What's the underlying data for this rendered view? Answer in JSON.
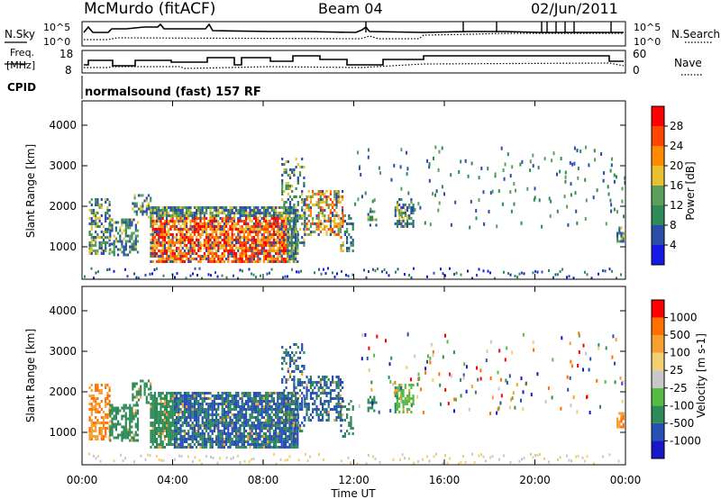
{
  "header": {
    "station": "McMurdo (fitACF)",
    "beam": "Beam 04",
    "date": "02/Jun/2011"
  },
  "top_panel": {
    "left_label": "N.Sky",
    "right_label": "N.Search",
    "left_ticks": [
      "10^5",
      "10^0"
    ],
    "right_ticks": [
      "10^5",
      "10^0"
    ]
  },
  "freq_panel": {
    "left_label_line1": "Freq.",
    "left_label_line2": "[MHz]",
    "right_label": "Nave",
    "left_ticks": [
      "18",
      "8"
    ],
    "right_ticks": [
      "60",
      "0"
    ]
  },
  "cpid": {
    "label": "CPID",
    "program": "normalsound (fast) 157 RF"
  },
  "chart_data": [
    {
      "type": "heatmap",
      "title": "",
      "ylabel": "Slant Range [km]",
      "xlabel": "",
      "yticks": [
        "1000",
        "2000",
        "3000",
        "4000"
      ],
      "ylim": [
        200,
        4600
      ],
      "xlim_hours": [
        0,
        24
      ],
      "colorbar": {
        "label": "Power [dB]",
        "ticks": [
          "4",
          "8",
          "12",
          "16",
          "20",
          "24",
          "28"
        ],
        "colors": [
          "#1717e6",
          "#2a4ea8",
          "#2e8b57",
          "#5aa05a",
          "#e8c030",
          "#ff8c00",
          "#ff4500",
          "#ff0000"
        ]
      }
    },
    {
      "type": "heatmap",
      "title": "",
      "ylabel": "Slant Range [km]",
      "xlabel": "Time UT",
      "yticks": [
        "1000",
        "2000",
        "3000",
        "4000"
      ],
      "ylim": [
        200,
        4600
      ],
      "xlim_hours": [
        0,
        24
      ],
      "xticks": [
        "00:00",
        "04:00",
        "08:00",
        "12:00",
        "16:00",
        "20:00",
        "00:00"
      ],
      "colorbar": {
        "label": "Velocity [m s-1]",
        "ticks": [
          "1000",
          "500",
          "100",
          "25",
          "-25",
          "-100",
          "-500",
          "-1000"
        ],
        "colors": [
          "#1717c8",
          "#2850b4",
          "#2e8b57",
          "#55bb44",
          "#c8c8c8",
          "#f0d070",
          "#f7a030",
          "#ff7000",
          "#ff0000"
        ]
      }
    }
  ]
}
